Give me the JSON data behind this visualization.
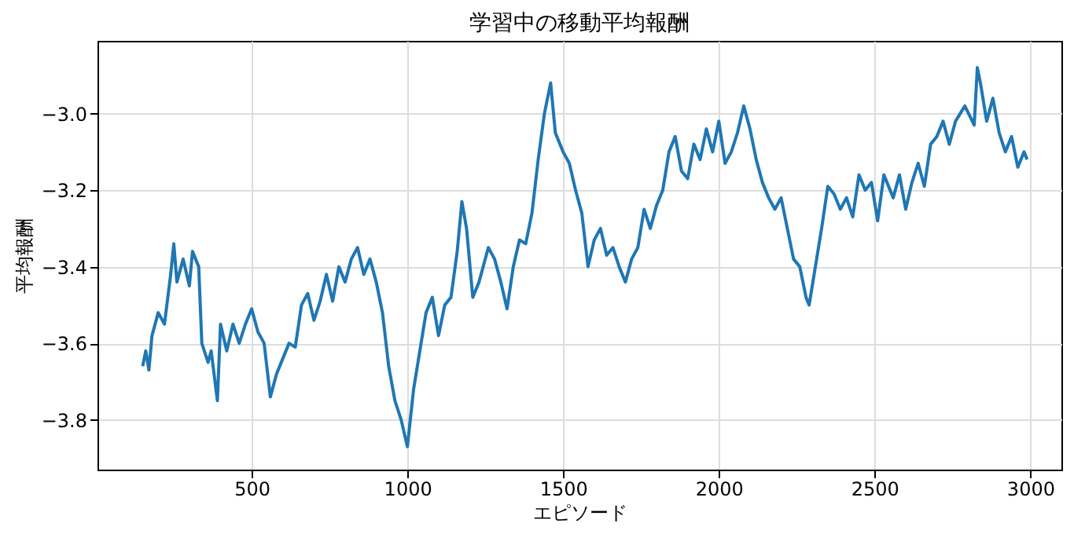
{
  "chart_data": {
    "type": "line",
    "title": "学習中の移動平均報酬",
    "xlabel": "エピソード",
    "ylabel": "平均報酬",
    "xlim": [
      5,
      3100
    ],
    "ylim": [
      -3.93,
      -2.81
    ],
    "xticks": [
      500,
      1000,
      1500,
      2000,
      2500,
      3000
    ],
    "yticks": [
      {
        "value": -3.8,
        "label": "−3.8"
      },
      {
        "value": -3.6,
        "label": "−3.6"
      },
      {
        "value": -3.4,
        "label": "−3.4"
      },
      {
        "value": -3.2,
        "label": "−3.2"
      },
      {
        "value": -3.0,
        "label": "−3.0"
      }
    ],
    "grid": true,
    "series": [
      {
        "color": "#1f77b4",
        "x": [
          150,
          160,
          170,
          180,
          200,
          220,
          240,
          250,
          260,
          280,
          300,
          310,
          330,
          340,
          360,
          370,
          390,
          400,
          420,
          440,
          460,
          480,
          500,
          520,
          540,
          560,
          580,
          600,
          620,
          640,
          660,
          680,
          700,
          720,
          740,
          760,
          780,
          800,
          820,
          840,
          860,
          880,
          900,
          920,
          940,
          960,
          980,
          1000,
          1020,
          1040,
          1060,
          1080,
          1100,
          1120,
          1140,
          1160,
          1175,
          1190,
          1210,
          1230,
          1260,
          1280,
          1300,
          1320,
          1340,
          1360,
          1380,
          1400,
          1420,
          1440,
          1460,
          1475,
          1500,
          1520,
          1540,
          1560,
          1580,
          1600,
          1620,
          1640,
          1660,
          1680,
          1700,
          1720,
          1740,
          1760,
          1780,
          1800,
          1820,
          1840,
          1860,
          1880,
          1900,
          1920,
          1940,
          1960,
          1980,
          2000,
          2020,
          2040,
          2060,
          2080,
          2100,
          2120,
          2140,
          2160,
          2180,
          2200,
          2220,
          2240,
          2260,
          2280,
          2290,
          2310,
          2330,
          2350,
          2370,
          2390,
          2410,
          2430,
          2450,
          2470,
          2490,
          2510,
          2530,
          2560,
          2580,
          2600,
          2620,
          2640,
          2660,
          2680,
          2700,
          2720,
          2740,
          2760,
          2790,
          2820,
          2830,
          2840,
          2860,
          2880,
          2900,
          2920,
          2940,
          2960,
          2980,
          2990
        ],
        "values": [
          -3.66,
          -3.62,
          -3.67,
          -3.58,
          -3.52,
          -3.55,
          -3.42,
          -3.34,
          -3.44,
          -3.38,
          -3.45,
          -3.36,
          -3.4,
          -3.6,
          -3.65,
          -3.62,
          -3.75,
          -3.55,
          -3.62,
          -3.55,
          -3.6,
          -3.55,
          -3.51,
          -3.57,
          -3.6,
          -3.74,
          -3.68,
          -3.64,
          -3.6,
          -3.61,
          -3.5,
          -3.47,
          -3.54,
          -3.49,
          -3.42,
          -3.49,
          -3.4,
          -3.44,
          -3.38,
          -3.35,
          -3.42,
          -3.38,
          -3.44,
          -3.52,
          -3.66,
          -3.75,
          -3.8,
          -3.87,
          -3.72,
          -3.62,
          -3.52,
          -3.48,
          -3.58,
          -3.5,
          -3.48,
          -3.36,
          -3.23,
          -3.3,
          -3.48,
          -3.44,
          -3.35,
          -3.38,
          -3.44,
          -3.51,
          -3.4,
          -3.33,
          -3.34,
          -3.26,
          -3.12,
          -3.0,
          -2.92,
          -3.05,
          -3.1,
          -3.13,
          -3.2,
          -3.26,
          -3.4,
          -3.33,
          -3.3,
          -3.37,
          -3.35,
          -3.4,
          -3.44,
          -3.38,
          -3.35,
          -3.25,
          -3.3,
          -3.24,
          -3.2,
          -3.1,
          -3.06,
          -3.15,
          -3.17,
          -3.08,
          -3.12,
          -3.04,
          -3.1,
          -3.02,
          -3.13,
          -3.1,
          -3.05,
          -2.98,
          -3.04,
          -3.12,
          -3.18,
          -3.22,
          -3.25,
          -3.22,
          -3.3,
          -3.38,
          -3.4,
          -3.48,
          -3.5,
          -3.4,
          -3.3,
          -3.19,
          -3.21,
          -3.25,
          -3.22,
          -3.27,
          -3.16,
          -3.2,
          -3.18,
          -3.28,
          -3.16,
          -3.22,
          -3.16,
          -3.25,
          -3.18,
          -3.13,
          -3.19,
          -3.08,
          -3.06,
          -3.02,
          -3.08,
          -3.02,
          -2.98,
          -3.03,
          -2.88,
          -2.92,
          -3.02,
          -2.96,
          -3.05,
          -3.1,
          -3.06,
          -3.14,
          -3.1,
          -3.12
        ]
      }
    ]
  }
}
